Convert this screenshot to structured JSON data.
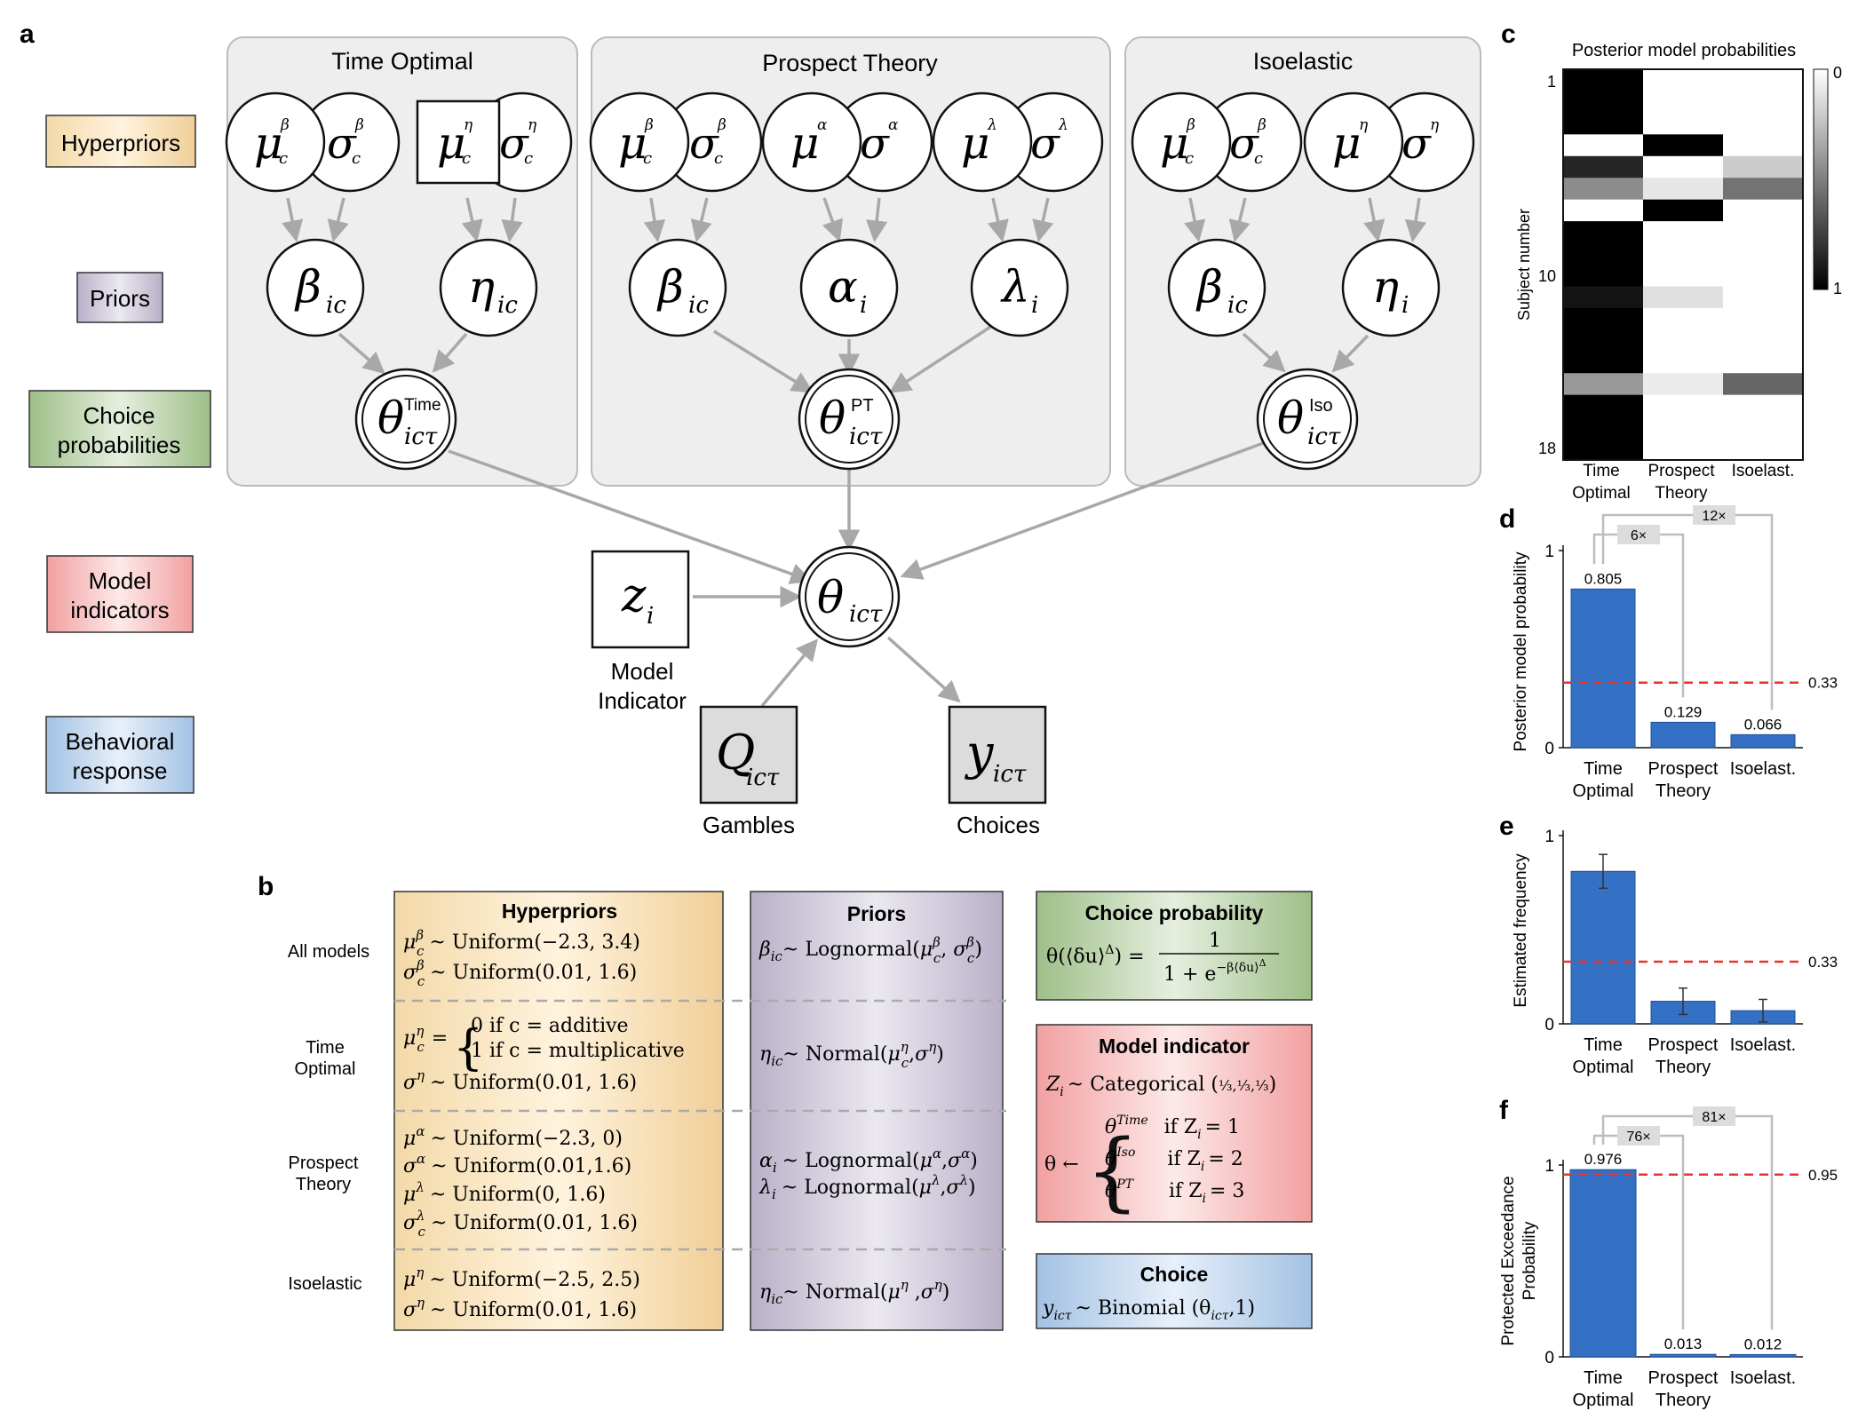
{
  "panels": {
    "a": "a",
    "b": "b",
    "c": "c",
    "d": "d",
    "e": "e",
    "f": "f"
  },
  "left_labels": [
    {
      "line1": "Hyperpriors",
      "line2": "",
      "color": "#f3d29c"
    },
    {
      "line1": "Priors",
      "line2": "",
      "color": "#c8c0d4"
    },
    {
      "line1": "Choice",
      "line2": "probabilities",
      "color": "#a6c592"
    },
    {
      "line1": "Model",
      "line2": "indicators",
      "color": "#f3a3a3"
    },
    {
      "line1": "Behavioral",
      "line2": "response",
      "color": "#a9c6e6"
    }
  ],
  "groups": {
    "time_optimal": "Time Optimal",
    "prospect_theory": "Prospect Theory",
    "isoelastic": "Isoelastic"
  },
  "nodes": {
    "mu": "μ",
    "sigma": "σ",
    "sup_beta": "β",
    "sup_eta": "η",
    "sup_alpha": "α",
    "sup_lambda": "λ",
    "sub_c": "c",
    "beta": "β",
    "eta": "η",
    "alpha": "α",
    "lambda": "λ",
    "sub_ic": "ic",
    "sub_i": "i",
    "theta": "θ",
    "sub_ict": "icτ",
    "sup_time": "Time",
    "sup_pt": "PT",
    "sup_iso": "Iso",
    "z": "z",
    "Q": "Q",
    "y": "y"
  },
  "node_captions": {
    "model_indicator_1": "Model",
    "model_indicator_2": "Indicator",
    "gambles": "Gambles",
    "choices": "Choices"
  },
  "table_b": {
    "row_labels": [
      {
        "l1": "All models",
        "l2": ""
      },
      {
        "l1": "Time",
        "l2": "Optimal"
      },
      {
        "l1": "Prospect",
        "l2": "Theory"
      },
      {
        "l1": "Isoelastic",
        "l2": ""
      }
    ],
    "hyperpriors_title": "Hyperpriors",
    "priors_title": "Priors",
    "hp_all_1": "~ Uniform(−2.3, 3.4)",
    "hp_all_2": "~ Uniform(0.01, 1.6)",
    "hp_to_case1": "0 if c = additive",
    "hp_to_case2": "1 if c = multiplicative",
    "hp_to_sig": "~ Uniform(0.01, 1.6)",
    "hp_pt_1": "~ Uniform(−2.3, 0)",
    "hp_pt_2": "~ Uniform(0.01,1.6)",
    "hp_pt_3": "~ Uniform(0, 1.6)",
    "hp_pt_4": "~ Uniform(0.01, 1.6)",
    "hp_iso_1": "~ Uniform(−2.5, 2.5)",
    "hp_iso_2": "~ Uniform(0.01, 1.6)",
    "pr_all": "~ Lognormal(",
    "pr_to": "~ Normal(",
    "pr_pt_1": "~ Lognormal(",
    "pr_pt_2": "~ Lognormal(",
    "pr_iso": "~ Normal(",
    "cp_title": "Choice probability",
    "cp_lhs": "θ(⟨δu⟩",
    "cp_num": "1",
    "cp_den": "1 + e",
    "mi_title": "Model indicator",
    "mi_line": "~ Categorical (",
    "mi_theta": "θ ←",
    "mi_c1": "if Z",
    "mi_v1": "= 1",
    "mi_v2": "= 2",
    "mi_v3": "= 3",
    "ch_title": "Choice",
    "ch_line": "~ Binomial (θ",
    "ch_end": ",1)"
  },
  "panel_c": {
    "title": "Posterior model probabilities",
    "ylabel": "Subject number",
    "yticks": [
      "1",
      "10",
      "18"
    ],
    "xcats": [
      {
        "l1": "Time",
        "l2": "Optimal"
      },
      {
        "l1": "Prospect",
        "l2": "Theory"
      },
      {
        "l1": "Isoelast.",
        "l2": ""
      }
    ],
    "colorbar_ticks": [
      "0",
      "1"
    ]
  },
  "chart_data": [
    {
      "type": "heatmap",
      "title": "Posterior model probabilities",
      "ylabel": "Subject number",
      "columns": [
        "Time Optimal",
        "Prospect Theory",
        "Isoelast."
      ],
      "rows": 18,
      "values": [
        [
          1.0,
          0.0,
          0.0
        ],
        [
          1.0,
          0.0,
          0.0
        ],
        [
          1.0,
          0.0,
          0.0
        ],
        [
          0.0,
          1.0,
          0.0
        ],
        [
          0.85,
          0.0,
          0.2
        ],
        [
          0.45,
          0.1,
          0.55
        ],
        [
          0.0,
          1.0,
          0.0
        ],
        [
          1.0,
          0.0,
          0.0
        ],
        [
          1.0,
          0.0,
          0.0
        ],
        [
          1.0,
          0.0,
          0.0
        ],
        [
          0.92,
          0.12,
          0.0
        ],
        [
          1.0,
          0.0,
          0.0
        ],
        [
          1.0,
          0.0,
          0.0
        ],
        [
          1.0,
          0.0,
          0.0
        ],
        [
          0.4,
          0.08,
          0.6
        ],
        [
          1.0,
          0.0,
          0.0
        ],
        [
          1.0,
          0.0,
          0.0
        ],
        [
          1.0,
          0.0,
          0.0
        ]
      ],
      "colorbar": [
        0,
        1
      ]
    },
    {
      "type": "bar",
      "categories": [
        "Time Optimal",
        "Prospect Theory",
        "Isoelast."
      ],
      "values": [
        0.805,
        0.129,
        0.066
      ],
      "value_labels": [
        "0.805",
        "0.129",
        "0.066"
      ],
      "ylabel": "Posterior model probability",
      "ylim": [
        0,
        1
      ],
      "yticks": [
        "0",
        "1"
      ],
      "reference_line": 0.33,
      "reference_label": "0.33",
      "ratio_labels": [
        "6×",
        "12×"
      ]
    },
    {
      "type": "bar",
      "categories": [
        "Time Optimal",
        "Prospect Theory",
        "Isoelast."
      ],
      "values": [
        0.81,
        0.12,
        0.07
      ],
      "errors": [
        0.09,
        0.07,
        0.06
      ],
      "ylabel": "Estimated frequency",
      "ylim": [
        0,
        1
      ],
      "yticks": [
        "0",
        "1"
      ],
      "reference_line": 0.33,
      "reference_label": "0.33"
    },
    {
      "type": "bar",
      "categories": [
        "Time Optimal",
        "Prospect Theory",
        "Isoelast."
      ],
      "values": [
        0.976,
        0.013,
        0.012
      ],
      "value_labels": [
        "0.976",
        "0.013",
        "0.012"
      ],
      "ylabel": "Protected Exceedance Probability",
      "ylim": [
        0,
        1
      ],
      "yticks": [
        "0",
        "1"
      ],
      "reference_line": 0.95,
      "reference_label": "0.95",
      "ratio_labels": [
        "76×",
        "81×"
      ]
    }
  ],
  "colors": {
    "node_fill": "#ffffff",
    "node_stroke": "#111111",
    "arrow": "#a8a8a8",
    "group_bg": "#eeeeee",
    "group_stroke": "#bbbbbb",
    "bar": "#3471c4",
    "ref": "#e8332a",
    "obs_fill": "#dcdcdc"
  }
}
